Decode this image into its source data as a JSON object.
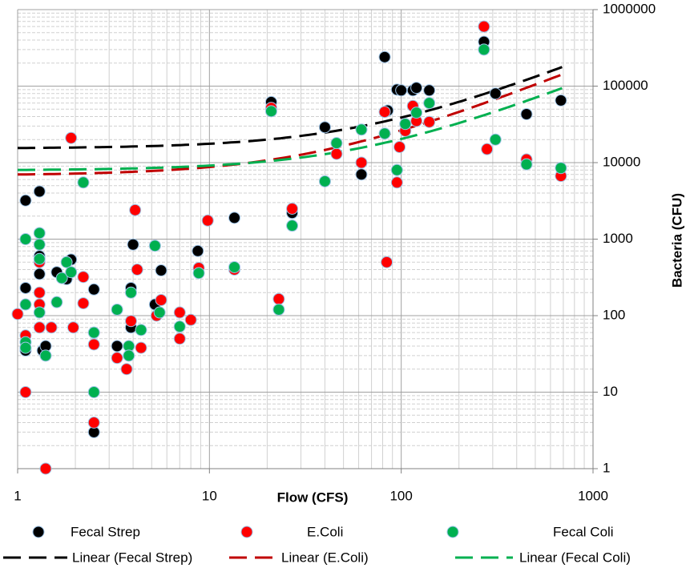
{
  "chart_data": {
    "type": "scatter",
    "x_label": "Flow (CFS)",
    "y_label": "Bacteria (CFU)",
    "x_log": true,
    "y_log": true,
    "grid": true,
    "minor_grid": true,
    "y_axis_side": "right",
    "legend": "bottom",
    "xlim": [
      1,
      1000
    ],
    "ylim": [
      1,
      1000000
    ],
    "xticks": [
      1,
      10,
      100,
      1000
    ],
    "yticks": [
      1,
      10,
      100,
      1000,
      10000,
      100000,
      1000000
    ],
    "series": [
      {
        "name": "Fecal Strep",
        "color": "#000000",
        "x": [
          1.1,
          1.1,
          1.1,
          1.3,
          1.3,
          1.3,
          1.35,
          1.4,
          1.6,
          1.8,
          1.9,
          2.5,
          2.5,
          3.3,
          3.9,
          3.9,
          4.0,
          5.2,
          5.6,
          8.7,
          13.5,
          21,
          27,
          40,
          62,
          82,
          85,
          95,
          100,
          115,
          120,
          140,
          270,
          310,
          450,
          680
        ],
        "values": [
          3200,
          230,
          35,
          4200,
          600,
          350,
          35,
          40,
          370,
          300,
          540,
          220,
          3,
          40,
          230,
          70,
          850,
          140,
          390,
          700,
          1900,
          62000,
          2200,
          29000,
          7000,
          240000,
          48000,
          90000,
          88000,
          88000,
          95000,
          88000,
          380000,
          80000,
          43000,
          65000
        ]
      },
      {
        "name": "E.Coli",
        "color": "#ff0000",
        "x": [
          1,
          1.1,
          1.1,
          1.3,
          1.3,
          1.3,
          1.3,
          1.4,
          1.5,
          1.9,
          1.95,
          2.2,
          2.2,
          2.5,
          2.5,
          3.3,
          3.7,
          3.9,
          4.1,
          4.2,
          4.4,
          5.3,
          5.6,
          7,
          7,
          8,
          8.8,
          9.8,
          13.5,
          21,
          23,
          27,
          46,
          62,
          82,
          84,
          95,
          98,
          105,
          115,
          120,
          140,
          270,
          280,
          450,
          680
        ],
        "values": [
          105,
          55,
          10,
          500,
          200,
          140,
          70,
          1,
          70,
          21000,
          70,
          320,
          145,
          4,
          42,
          28,
          20,
          85,
          2400,
          400,
          38,
          100,
          160,
          50,
          110,
          88,
          420,
          1750,
          400,
          52000,
          165,
          2500,
          13000,
          10000,
          46000,
          500,
          5500,
          16000,
          26000,
          55000,
          35000,
          34000,
          600000,
          15000,
          11000,
          6700
        ]
      },
      {
        "name": "Fecal Coli",
        "color": "#00b050",
        "x": [
          1.1,
          1.1,
          1.1,
          1.1,
          1.3,
          1.3,
          1.3,
          1.3,
          1.4,
          1.6,
          1.7,
          1.8,
          1.9,
          2.2,
          2.5,
          2.5,
          3.3,
          3.8,
          3.8,
          3.9,
          4.4,
          5.2,
          5.5,
          7,
          8.8,
          13.5,
          21,
          23,
          27,
          40,
          46,
          62,
          82,
          95,
          105,
          120,
          140,
          270,
          310,
          450,
          680
        ],
        "values": [
          1000,
          140,
          45,
          38,
          1200,
          850,
          550,
          110,
          30,
          150,
          310,
          500,
          370,
          5500,
          60,
          10,
          120,
          40,
          30,
          200,
          65,
          820,
          110,
          72,
          360,
          430,
          47000,
          120,
          1500,
          5700,
          18000,
          27000,
          24000,
          8000,
          32000,
          45000,
          60000,
          300000,
          20000,
          9500,
          8500
        ]
      }
    ],
    "trendlines": [
      {
        "name": "Linear (Fecal Strep)",
        "color": "#000000",
        "intercept": 15300,
        "slope": 235,
        "xrange": [
          1,
          690
        ]
      },
      {
        "name": "Linear (E.Coli)",
        "color": "#c00000",
        "intercept": 6800,
        "slope": 196,
        "xrange": [
          1,
          690
        ]
      },
      {
        "name": "Linear (Fecal Coli)",
        "color": "#00b050",
        "intercept": 7900,
        "slope": 125,
        "xrange": [
          1,
          690
        ]
      }
    ]
  }
}
